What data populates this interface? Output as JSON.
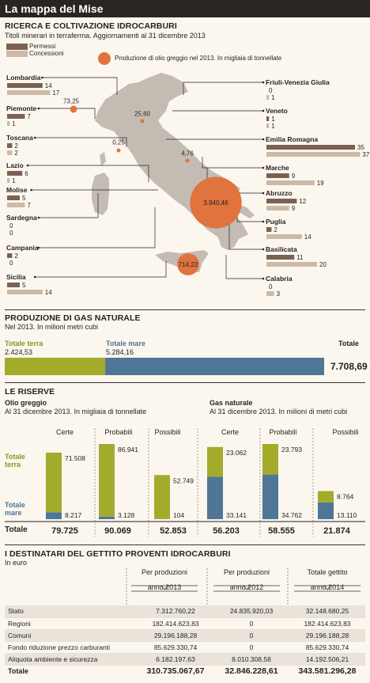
{
  "title": "La mappa del Mise",
  "ricerca": {
    "title": "RICERCA E COLTIVAZIONE IDROCARBURI",
    "subtitle": "Titoli minerari in terraferma. Aggiornamenti al 31 dicembre 2013",
    "legend_permessi": "Permessi",
    "legend_concessioni": "Concessioni",
    "legend_produzione": "Produzione di olio greggio nel 2013. In migliaia di tonnellate",
    "colors": {
      "permessi": "#7a6152",
      "concessioni": "#cdb9a6",
      "circle": "#e0733e",
      "map": "#c4bcb3"
    }
  },
  "chart_data": [
    {
      "type": "bar",
      "title": "RICERCA E COLTIVAZIONE IDROCARBURI",
      "categories": [
        "Lombardia",
        "Piemonte",
        "Toscana",
        "Lazio",
        "Molise",
        "Sardegna",
        "Campania",
        "Sicilia",
        "Friuli-Venezia Giulia",
        "Veneto",
        "Emilia Romagna",
        "Marche",
        "Abruzzo",
        "Puglia",
        "Basilicata",
        "Calabria"
      ],
      "series": [
        {
          "name": "Permessi",
          "values": [
            14,
            7,
            2,
            6,
            5,
            0,
            2,
            5,
            0,
            1,
            35,
            9,
            12,
            2,
            11,
            0
          ]
        },
        {
          "name": "Concessioni",
          "values": [
            17,
            1,
            2,
            1,
            7,
            0,
            0,
            14,
            1,
            1,
            37,
            19,
            9,
            14,
            20,
            3
          ]
        }
      ],
      "production_labels": [
        "73,25",
        "25,60",
        "0,25",
        "4,76",
        "3.940,46",
        "714,22"
      ],
      "production_values": [
        73.25,
        25.6,
        0.25,
        4.76,
        3940.46,
        714.22
      ]
    },
    {
      "type": "bar",
      "title": "PRODUZIONE DI GAS NATURALE",
      "categories": [
        "Totale terra",
        "Totale mare"
      ],
      "values": [
        2424.53,
        5284.16
      ],
      "value_labels": [
        "2.424,53",
        "5.284,16"
      ],
      "total": 7708.69,
      "total_label": "7.708,69"
    },
    {
      "type": "bar",
      "title": "LE RISERVE",
      "groups": [
        {
          "name": "Olio greggio",
          "categories": [
            "Certe",
            "Probabili",
            "Possibili"
          ],
          "series": [
            {
              "name": "Totale terra",
              "values": [
                71508,
                86941,
                52749
              ]
            },
            {
              "name": "Totale mare",
              "values": [
                8217,
                3128,
                104
              ]
            }
          ],
          "totals": [
            79725,
            90069,
            52853
          ],
          "labels_terra": [
            "71.508",
            "86.941",
            "52.749"
          ],
          "labels_mare": [
            "8.217",
            "3.128",
            "104"
          ],
          "labels_tot": [
            "79.725",
            "90.069",
            "52.853"
          ]
        },
        {
          "name": "Gas naturale",
          "categories": [
            "Certe",
            "Probabili",
            "Possibili"
          ],
          "series": [
            {
              "name": "Totale terra",
              "values": [
                23062,
                23793,
                8764
              ]
            },
            {
              "name": "Totale mare",
              "values": [
                33141,
                34762,
                13110
              ]
            }
          ],
          "totals": [
            56203,
            58555,
            21874
          ],
          "labels_terra": [
            "23.062",
            "23.793",
            "8.764"
          ],
          "labels_mare": [
            "33.141",
            "34.762",
            "13.110"
          ],
          "labels_tot": [
            "56.203",
            "58.555",
            "21.874"
          ]
        }
      ]
    }
  ],
  "gas": {
    "title": "PRODUZIONE DI GAS NATURALE",
    "subtitle": "Nel 2013. In milioni metri cubi",
    "terra_label": "Totale terra",
    "mare_label": "Totale mare",
    "totale_label": "Totale",
    "colors": {
      "terra": "#a3ab2b",
      "mare": "#4f7597"
    }
  },
  "riserve": {
    "title": "LE RISERVE",
    "olio_title": "Olio greggio",
    "olio_sub": "Al 31 dicembre 2013. In migliaia di tonnellate",
    "gas_title": "Gas naturale",
    "gas_sub": "Al 31 dicembre 2013. In milioni di metri cubi",
    "terra_label_1": "Totale",
    "terra_label_2": "terra",
    "mare_label_1": "Totale",
    "mare_label_2": "mare",
    "totale_label": "Totale"
  },
  "destinatari": {
    "title": "I DESTINATARI DEL GETTITO PROVENTI IDROCARBURI",
    "subtitle": "In euro",
    "col1_a": "Per produzioni",
    "col1_b": "anno 2013",
    "col2_a": "Per produzioni",
    "col2_b": "anno 2012",
    "col3_a": "Totale gettito",
    "col3_b": "anno 2014",
    "rows": [
      {
        "label": "Stato",
        "v1": "7.312.760,22",
        "v2": "24.835.920,03",
        "v3": "32.148.680,25"
      },
      {
        "label": "Regioni",
        "v1": "182.414.623,83",
        "v2": "0",
        "v3": "182.414.623,83"
      },
      {
        "label": "Comuni",
        "v1": "29.196.188,28",
        "v2": "0",
        "v3": "29.196.188,28"
      },
      {
        "label": "Fondo riduzione prezzo carburanti",
        "v1": "85.629.330,74",
        "v2": "0",
        "v3": "85.629.330,74"
      },
      {
        "label": "Aliquota ambiente e sicurezza",
        "v1": "6.182.197,63",
        "v2": "8.010.308,58",
        "v3": "14.192.506,21"
      }
    ],
    "total": {
      "label": "Totale",
      "v1": "310.735.067,67",
      "v2": "32.846.228,61",
      "v3": "343.581.296,28"
    }
  }
}
